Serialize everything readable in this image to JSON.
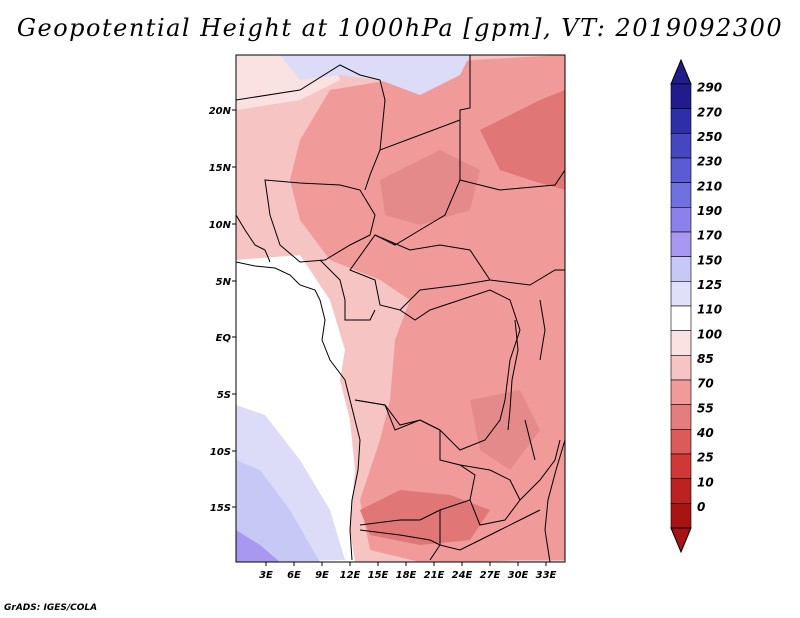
{
  "title": "Geopotential Height at 1000hPa [gpm], VT: 2019092300",
  "credit": "GrADS: IGES/COLA",
  "map": {
    "lon_labels": [
      "3E",
      "6E",
      "9E",
      "12E",
      "15E",
      "18E",
      "21E",
      "24E",
      "27E",
      "30E",
      "33E"
    ],
    "lat_labels": [
      "20N",
      "15N",
      "10N",
      "5N",
      "EQ",
      "5S",
      "10S",
      "15S"
    ],
    "colors": {
      "high_red": "#e07676",
      "mid_red": "#f09a9a",
      "light_red": "#f7c4c4",
      "blue_light": "#dcdcf8",
      "blue_mid": "#c8c8f6",
      "blue_dark": "#a898f2"
    }
  },
  "colorbar": {
    "levels": [
      "290",
      "270",
      "250",
      "230",
      "210",
      "190",
      "170",
      "150",
      "125",
      "110",
      "100",
      "85",
      "70",
      "55",
      "40",
      "25",
      "10",
      "0"
    ],
    "colors": [
      "#201c8c",
      "#2e2ea8",
      "#4646c0",
      "#5c5cd2",
      "#7070e0",
      "#8c80ec",
      "#a898f2",
      "#c8c8f6",
      "#e0e0fa",
      "#ffffff",
      "#fbe2e2",
      "#f7c4c4",
      "#f09a9a",
      "#e47e7e",
      "#dc5a5a",
      "#d03838",
      "#bc2222",
      "#a81414"
    ]
  }
}
